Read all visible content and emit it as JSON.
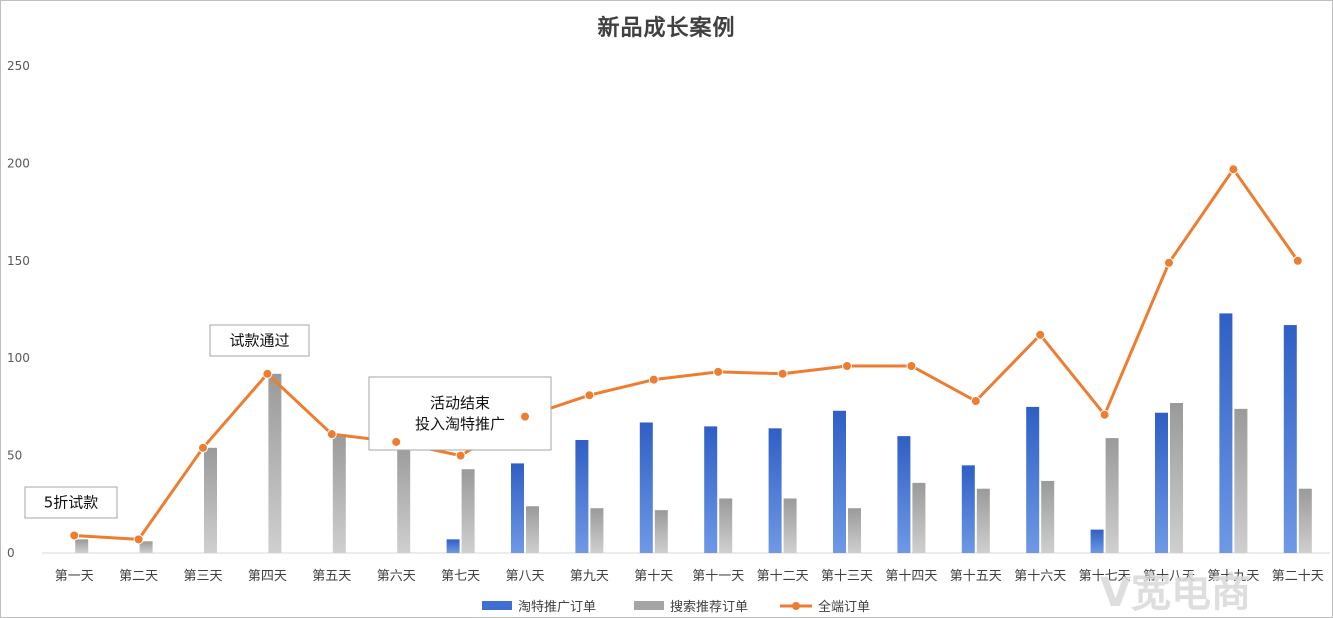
{
  "chart_data": {
    "type": "bar",
    "title": "新品成长案例",
    "categories": [
      "第一天",
      "第二天",
      "第三天",
      "第四天",
      "第五天",
      "第六天",
      "第七天",
      "第八天",
      "第九天",
      "第十天",
      "第十一天",
      "第十二天",
      "第十三天",
      "第十四天",
      "第十五天",
      "第十六天",
      "第十七天",
      "第十八天",
      "第十九天",
      "第二十天"
    ],
    "ylim": [
      0,
      250
    ],
    "yticks": [
      0,
      50,
      100,
      150,
      200,
      250
    ],
    "series": [
      {
        "name": "淘特推广订单",
        "kind": "bar",
        "color": "#4472c4",
        "values": [
          0,
          0,
          0,
          0,
          0,
          0,
          7,
          46,
          58,
          67,
          65,
          64,
          73,
          60,
          45,
          75,
          12,
          72,
          123,
          117
        ]
      },
      {
        "name": "搜索推荐订单",
        "kind": "bar",
        "color": "#a5a5a5",
        "values": [
          7,
          6,
          54,
          92,
          61,
          56,
          43,
          24,
          23,
          22,
          28,
          28,
          23,
          36,
          33,
          37,
          59,
          77,
          74,
          33
        ]
      },
      {
        "name": "全端订单",
        "kind": "line",
        "color": "#ed7d31",
        "values": [
          9,
          7,
          54,
          92,
          61,
          57,
          50,
          70,
          81,
          89,
          93,
          92,
          96,
          96,
          78,
          112,
          71,
          149,
          197,
          150
        ]
      }
    ],
    "annotations": [
      {
        "lines": [
          "5折试款"
        ],
        "day": 0
      },
      {
        "lines": [
          "试款通过"
        ],
        "day": 3
      },
      {
        "lines": [
          "活动结束",
          "投入淘特推广"
        ],
        "day": 6
      }
    ],
    "legend_position": "bottom",
    "grid": false
  },
  "watermark": "V宽电商"
}
